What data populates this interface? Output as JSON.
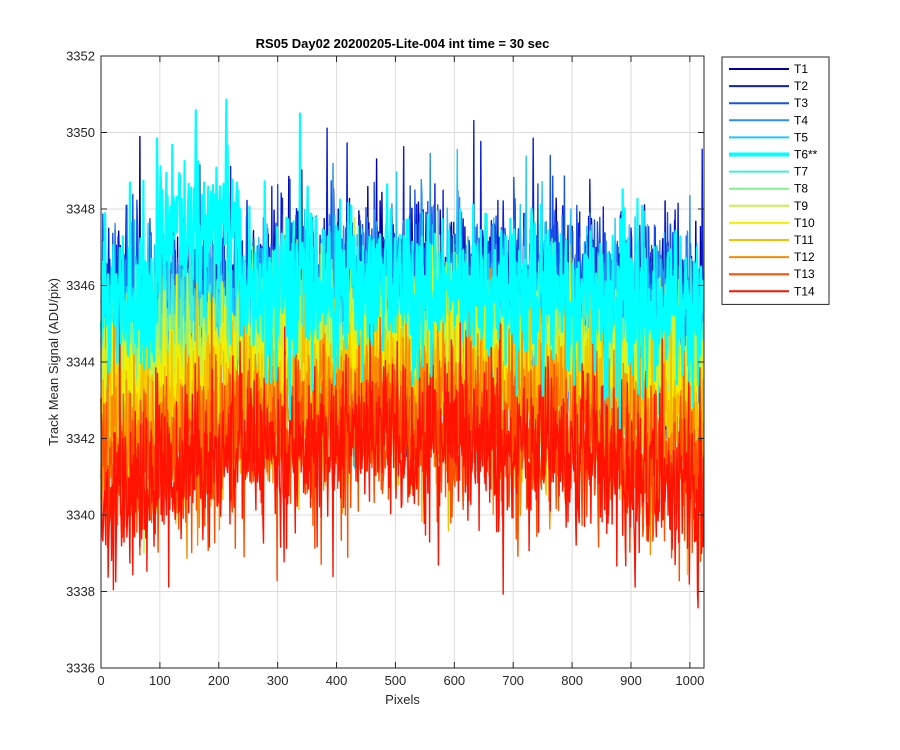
{
  "chart_data": {
    "type": "line",
    "title": "RS05 Day02 20200205-Lite-004 int time = 30 sec",
    "xlabel": "Pixels",
    "ylabel": "Track Mean Signal (ADU/pix)",
    "xlim": [
      0,
      1024
    ],
    "ylim": [
      3336,
      3352
    ],
    "xticks": [
      0,
      100,
      200,
      300,
      400,
      500,
      600,
      700,
      800,
      900,
      1000
    ],
    "yticks": [
      3336,
      3338,
      3340,
      3342,
      3344,
      3346,
      3348,
      3350,
      3352
    ],
    "grid": true,
    "legend_position": "outside-right",
    "n_points_per_series": 1024,
    "x_step": 1,
    "series": [
      {
        "name": "T1",
        "color": "#0000aa",
        "mean": 3346.0,
        "base_center": 3345.8,
        "base_edge": 3345.2,
        "noise": 2.0
      },
      {
        "name": "T2",
        "color": "#0a1ed8",
        "mean": 3345.9,
        "base_center": 3345.9,
        "base_edge": 3345.0,
        "noise": 2.0
      },
      {
        "name": "T3",
        "color": "#1a50e6",
        "mean": 3346.0,
        "base_center": 3346.0,
        "base_edge": 3345.2,
        "noise": 2.0
      },
      {
        "name": "T4",
        "color": "#2a8ef0",
        "mean": 3345.8,
        "base_center": 3345.8,
        "base_edge": 3345.0,
        "noise": 2.0
      },
      {
        "name": "T5",
        "color": "#1ec8f8",
        "mean": 3345.6,
        "base_center": 3345.6,
        "base_edge": 3344.8,
        "noise": 1.8
      },
      {
        "name": "T6**",
        "color": "#00ffff",
        "mean": 3346.4,
        "base_center": 3346.0,
        "base_edge": 3345.2,
        "noise": 1.8,
        "highlight": true,
        "bump": [
          95,
          235,
          3347.6
        ]
      },
      {
        "name": "T7",
        "color": "#40f0d0",
        "mean": 3345.0,
        "base_center": 3345.0,
        "base_edge": 3344.2,
        "noise": 1.8
      },
      {
        "name": "T8",
        "color": "#80f090",
        "mean": 3344.6,
        "base_center": 3344.6,
        "base_edge": 3343.8,
        "noise": 1.8
      },
      {
        "name": "T9",
        "color": "#c8f040",
        "mean": 3344.2,
        "base_center": 3344.3,
        "base_edge": 3343.4,
        "noise": 1.8
      },
      {
        "name": "T10",
        "color": "#f2f000",
        "mean": 3344.0,
        "base_center": 3344.0,
        "base_edge": 3343.0,
        "noise": 1.8
      },
      {
        "name": "T11",
        "color": "#f6bf00",
        "mean": 3343.2,
        "base_center": 3343.3,
        "base_edge": 3342.2,
        "noise": 1.8
      },
      {
        "name": "T12",
        "color": "#fa8a00",
        "mean": 3342.6,
        "base_center": 3342.8,
        "base_edge": 3341.6,
        "noise": 1.8
      },
      {
        "name": "T13",
        "color": "#fc5000",
        "mean": 3342.0,
        "base_center": 3342.2,
        "base_edge": 3341.0,
        "noise": 1.8
      },
      {
        "name": "T14",
        "color": "#ff1200",
        "mean": 3341.5,
        "base_center": 3342.0,
        "base_edge": 3340.5,
        "noise": 2.0
      }
    ]
  }
}
